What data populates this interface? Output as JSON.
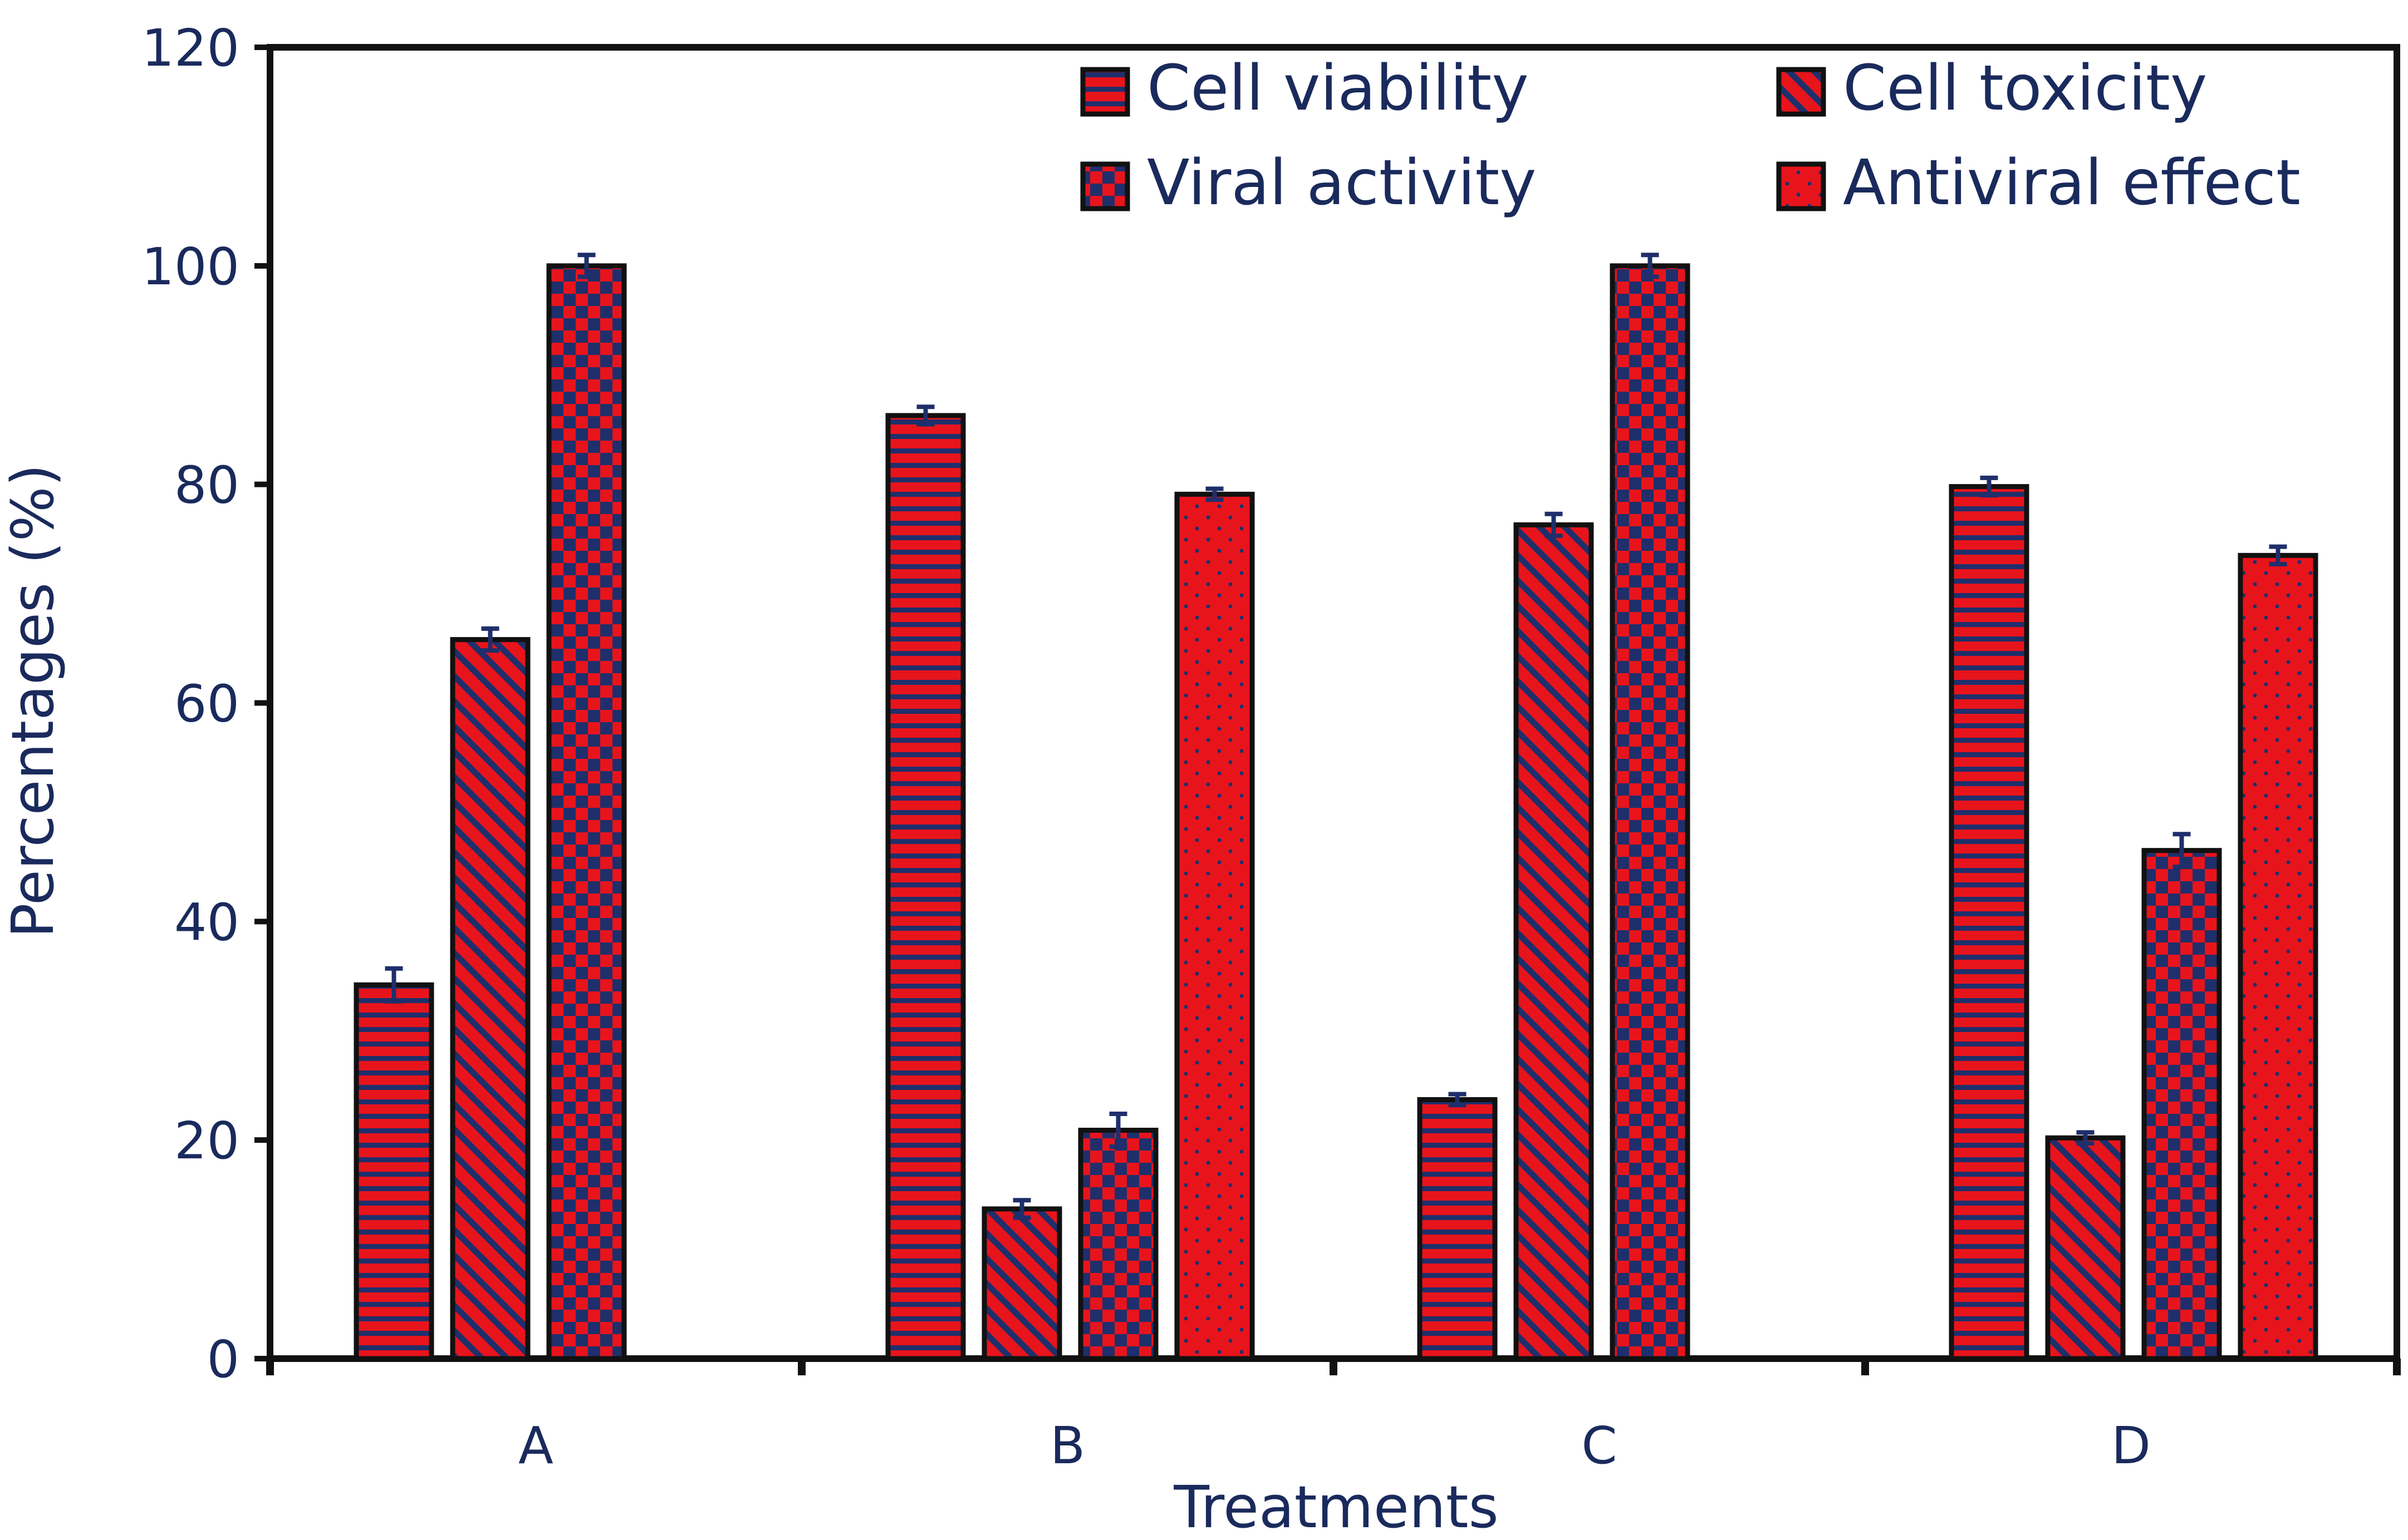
{
  "chart_data": {
    "type": "bar",
    "title": "",
    "xlabel": "Treatments",
    "ylabel": "Percentages (%)",
    "ylim": [
      0,
      120
    ],
    "yticks": [
      0,
      20,
      40,
      60,
      80,
      100,
      120
    ],
    "categories": [
      "A",
      "B",
      "C",
      "D"
    ],
    "grid": false,
    "legend_position": "top-right",
    "series": [
      {
        "name": "Cell viability",
        "pattern": "horizontal-stripes",
        "values": [
          34.2,
          86.3,
          23.7,
          79.8
        ],
        "errors": [
          1.5,
          0.8,
          0.5,
          0.8
        ]
      },
      {
        "name": "Cell toxicity",
        "pattern": "diagonal-stripes",
        "values": [
          65.8,
          13.7,
          76.3,
          20.2
        ],
        "errors": [
          1.0,
          0.8,
          1.0,
          0.5
        ]
      },
      {
        "name": "Viral activity",
        "pattern": "checkerboard",
        "values": [
          100,
          20.9,
          100,
          46.5
        ],
        "errors": [
          1.0,
          1.5,
          1.0,
          1.5
        ]
      },
      {
        "name": "Antiviral effect",
        "pattern": "dots",
        "values": [
          null,
          79.1,
          null,
          73.5
        ],
        "errors": [
          null,
          0.5,
          null,
          0.8
        ]
      }
    ],
    "colors": {
      "bar_fill": "#e8141c",
      "pattern": "#1f2f6b",
      "outline": "#111111",
      "error_bar": "#1f2f6b",
      "text": "#1a2a5c"
    }
  }
}
